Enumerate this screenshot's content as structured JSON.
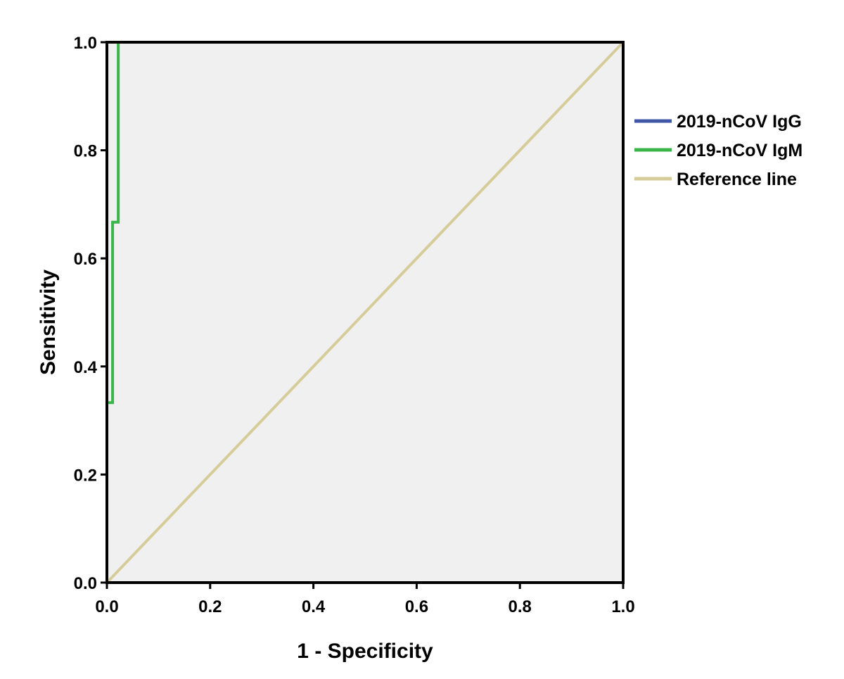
{
  "chart_data": {
    "type": "line",
    "title": "",
    "xlabel": "1 - Specificity",
    "ylabel": "Sensitivity",
    "xlim": [
      0,
      1
    ],
    "ylim": [
      0,
      1
    ],
    "x_ticks": [
      "0.0",
      "0.2",
      "0.4",
      "0.6",
      "0.8",
      "1.0"
    ],
    "y_ticks": [
      "0.0",
      "0.2",
      "0.4",
      "0.6",
      "0.8",
      "1.0"
    ],
    "grid": false,
    "legend_position": "right",
    "plot_background": "#f0f0f0",
    "series": [
      {
        "name": "2019-nCoV IgG",
        "color": "#3f55a5",
        "x": [
          0,
          0,
          1
        ],
        "y": [
          0,
          1,
          1
        ]
      },
      {
        "name": "2019-nCoV IgM",
        "color": "#3bb54a",
        "x": [
          0,
          0,
          0.011,
          0.011,
          0.022,
          0.022,
          1
        ],
        "y": [
          0,
          0.333,
          0.333,
          0.667,
          0.667,
          1,
          1
        ]
      },
      {
        "name": "Reference line",
        "color": "#d6cc99",
        "x": [
          0,
          1
        ],
        "y": [
          0,
          1
        ]
      }
    ]
  }
}
